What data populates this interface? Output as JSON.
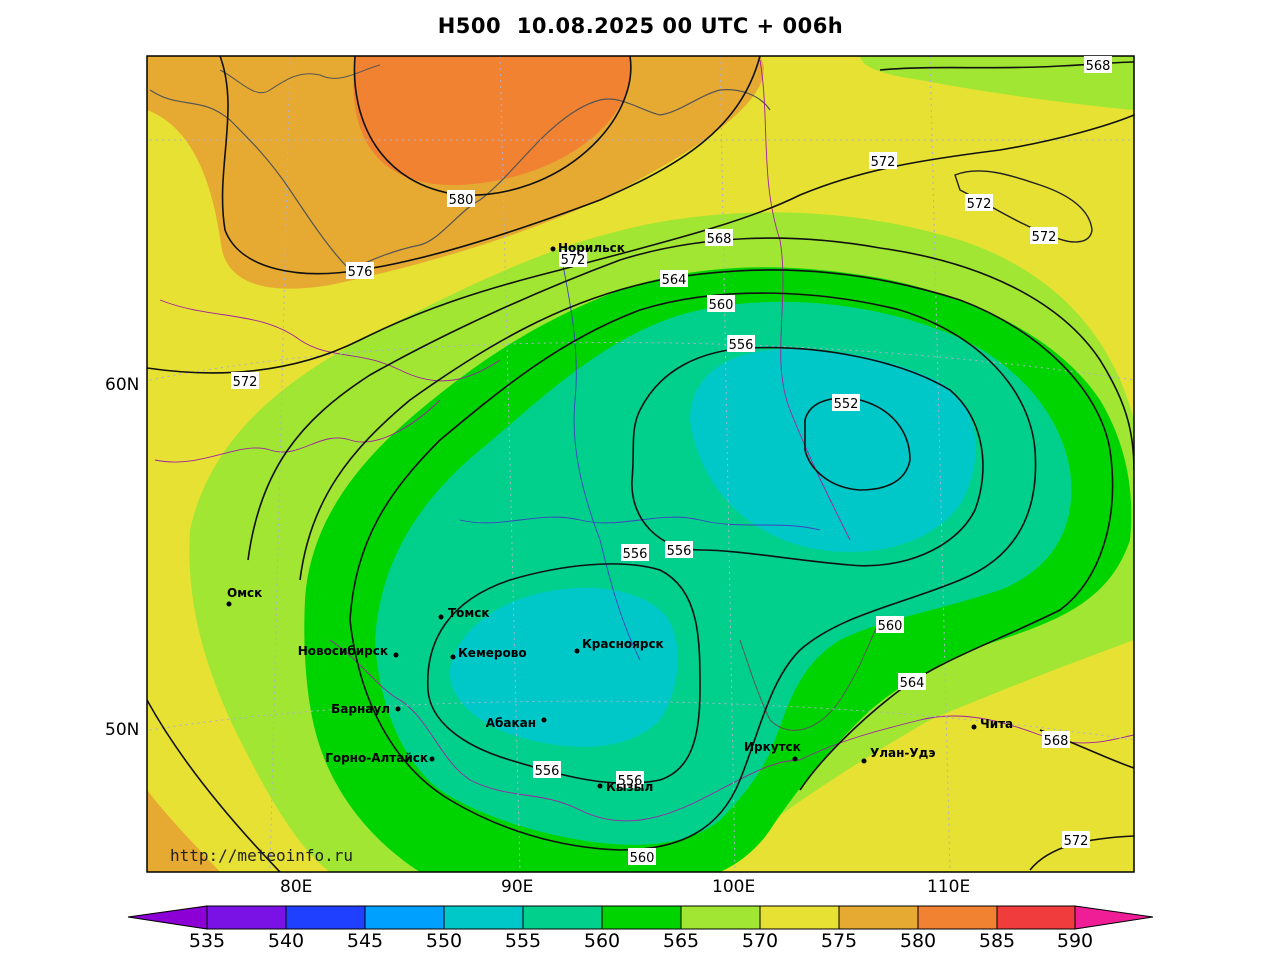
{
  "title": "H500  10.08.2025 00 UTC + 006h",
  "watermark": "http://meteoinfo.ru",
  "latitude_labels": [
    "60N",
    "50N"
  ],
  "longitude_labels": [
    "80E",
    "90E",
    "100E",
    "110E"
  ],
  "colorbar": {
    "labels": [
      "535",
      "540",
      "545",
      "550",
      "555",
      "560",
      "565",
      "570",
      "575",
      "580",
      "585",
      "590"
    ],
    "colors": [
      "#8c00d6",
      "#7a12e6",
      "#2040ff",
      "#00a0ff",
      "#00c8c8",
      "#00d08c",
      "#00d400",
      "#a0e632",
      "#e6e132",
      "#e6aa32",
      "#f08232",
      "#f03c3c",
      "#f01e96"
    ]
  },
  "contours": [
    {
      "label": "580"
    },
    {
      "label": "576"
    },
    {
      "label": "572"
    },
    {
      "label": "572"
    },
    {
      "label": "572"
    },
    {
      "label": "572"
    },
    {
      "label": "572"
    },
    {
      "label": "572"
    },
    {
      "label": "568"
    },
    {
      "label": "568"
    },
    {
      "label": "568"
    },
    {
      "label": "564"
    },
    {
      "label": "564"
    },
    {
      "label": "560"
    },
    {
      "label": "560"
    },
    {
      "label": "560"
    },
    {
      "label": "556"
    },
    {
      "label": "556"
    },
    {
      "label": "556"
    },
    {
      "label": "556"
    },
    {
      "label": "556"
    },
    {
      "label": "552"
    }
  ],
  "cities": [
    {
      "name": "Норильск"
    },
    {
      "name": "Омск"
    },
    {
      "name": "Томск"
    },
    {
      "name": "Новосибирск"
    },
    {
      "name": "Кемерово"
    },
    {
      "name": "Красноярск"
    },
    {
      "name": "Барнаул"
    },
    {
      "name": "Абакан"
    },
    {
      "name": "Горно-Алтайск"
    },
    {
      "name": "Кызыл"
    },
    {
      "name": "Иркутск"
    },
    {
      "name": "Улан-Удэ"
    },
    {
      "name": "Чита"
    }
  ]
}
